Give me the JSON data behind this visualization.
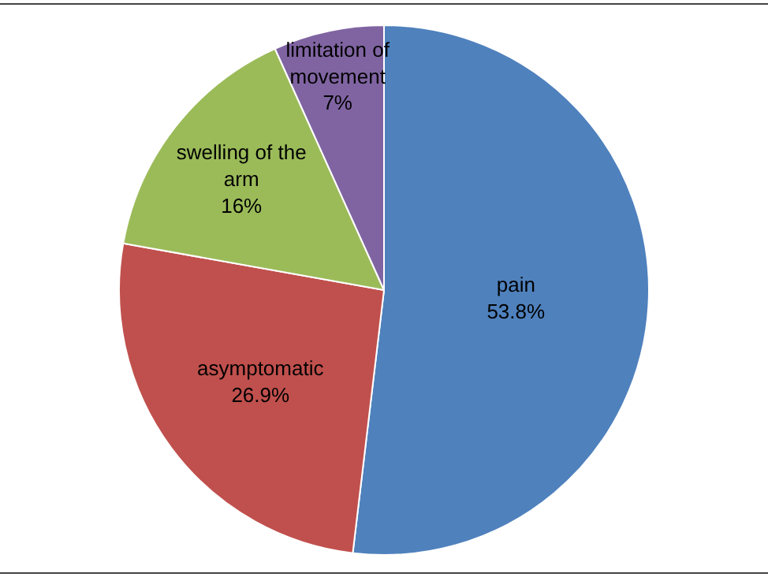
{
  "chart_data": {
    "type": "pie",
    "categories": [
      "pain",
      "asymptomatic",
      "swelling of the arm",
      "limitation of movement"
    ],
    "values": [
      53.8,
      26.9,
      16,
      7
    ],
    "value_labels": [
      "53.8%",
      "26.9%",
      "16%",
      "7%"
    ],
    "colors": [
      "#4f81bd",
      "#c0504d",
      "#9bbb59",
      "#8064a2"
    ],
    "legend": false
  }
}
